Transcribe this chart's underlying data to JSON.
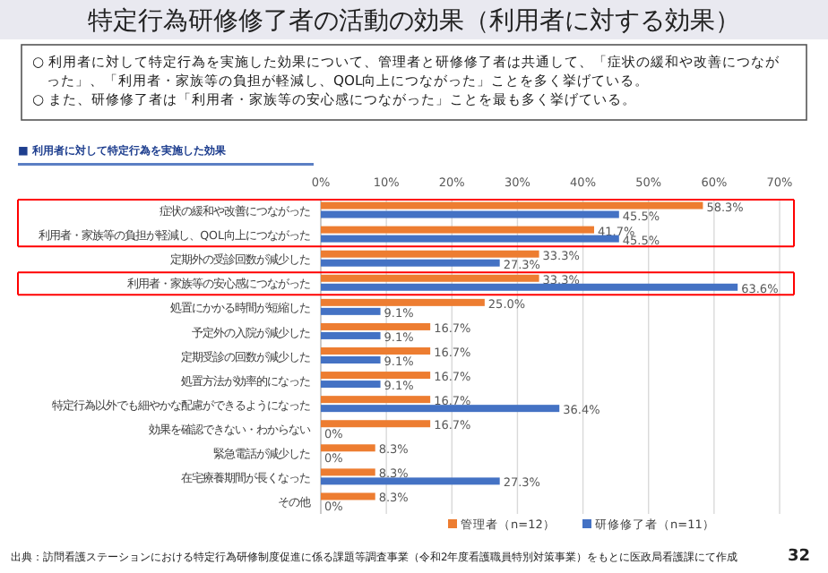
{
  "chart_data": {
    "type": "bar",
    "orientation": "horizontal",
    "title": "特定行為研修修了者の活動の効果（利用者に対する効果）",
    "subtitle": "○ 利用者に対して特定行為を実施した効果について、管理者と研修修了者は共通して、「症状の緩和や改善につながった」、「利用者・家族等の負担が軽減し、QOL向上につながった」ことを多く挙げている。\n○ また、研修修了者は「利用者・家族等の安心感につながった」ことを最も多く挙げている。",
    "categories": [
      "症状の緩和や改善につながった",
      "利用者・家族等の負担が軽減し、QOL向上につながった",
      "定期外の受診回数が減少した",
      "利用者・家族等の安心感につながった",
      "処置にかかる時間が短縮した",
      "予定外の入院が減少した",
      "定期受診の回数が減少した",
      "処置方法が効率的になった",
      "特定行為以外でも細やかな配慮ができるようになった",
      "効果を確認できない・わからない",
      "緊急電話が減少した",
      "在宅療養期間が長くなった",
      "その他"
    ],
    "series": [
      {
        "name": "管理者（n=12）",
        "color": "#ed7d31",
        "values": [
          58.3,
          41.7,
          33.3,
          33.3,
          25.0,
          16.7,
          16.7,
          16.7,
          16.7,
          16.7,
          8.3,
          8.3,
          8.3
        ],
        "value_labels": [
          "58.3%",
          "41.7%",
          "33.3%",
          "33.3%",
          "25.0%",
          "16.7%",
          "16.7%",
          "16.7%",
          "16.7%",
          "16.7%",
          "8.3%",
          "8.3%",
          "8.3%"
        ]
      },
      {
        "name": "研修修了者（n=11）",
        "color": "#4472c4",
        "values": [
          45.5,
          45.5,
          27.3,
          63.6,
          9.1,
          9.1,
          9.1,
          9.1,
          36.4,
          0,
          0,
          27.3,
          0
        ],
        "value_labels": [
          "45.5%",
          "45.5%",
          "27.3%",
          "63.6%",
          "9.1%",
          "9.1%",
          "9.1%",
          "9.1%",
          "36.4%",
          "0%",
          "0%",
          "27.3%",
          "0%"
        ]
      }
    ],
    "xlim": [
      0,
      70
    ],
    "xticks": [
      {
        "value": 0,
        "label": "0%"
      },
      {
        "value": 10,
        "label": "10%"
      },
      {
        "value": 20,
        "label": "20%"
      },
      {
        "value": 30,
        "label": "30%"
      },
      {
        "value": 40,
        "label": "40%"
      },
      {
        "value": 50,
        "label": "50%"
      },
      {
        "value": 60,
        "label": "60%"
      },
      {
        "value": 70,
        "label": "70%"
      }
    ],
    "grid": "x",
    "legend": "bottom",
    "annotations": [
      "■ 利用者に対して特定行為を実施した効果",
      "出典：訪問看護ステーションにおける特定行為研修制度促進に係る課題等調査事業（令和2年度看護職員特別対策事業）をもとに医政局看護課にて作成",
      "32"
    ]
  }
}
